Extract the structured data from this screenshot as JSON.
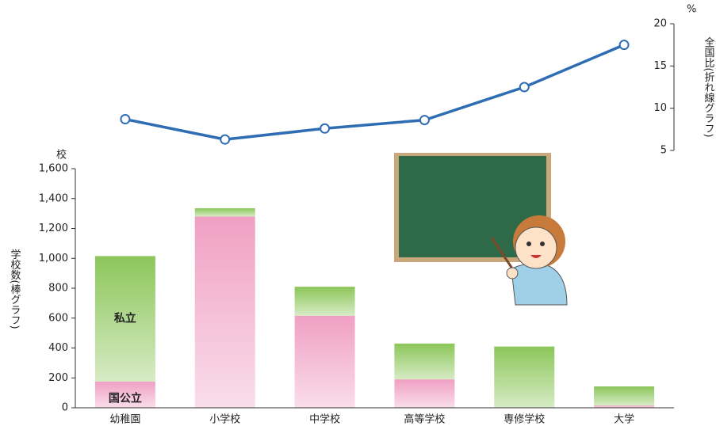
{
  "chart_data": {
    "type": "bar-line",
    "y_unit": "校",
    "y2_unit": "%",
    "ylabel": "学校数(棒グラフ)",
    "y2label": "全国比(折れ線グラフ)",
    "categories": [
      "幼稚園",
      "小学校",
      "中学校",
      "高等学校",
      "専修学校",
      "大学"
    ],
    "series": [
      {
        "name": "国公立",
        "color": "#f0a0c4",
        "values": [
          175,
          1280,
          615,
          190,
          0,
          15
        ]
      },
      {
        "name": "私立",
        "color": "#8cc65a",
        "values": [
          840,
          55,
          195,
          240,
          410,
          128
        ]
      }
    ],
    "line": {
      "color": "#2e6db4",
      "axis": "y2",
      "values": [
        8.7,
        6.3,
        7.6,
        8.6,
        12.5,
        17.5
      ]
    },
    "ylim": [
      0,
      1600
    ],
    "yticks": [
      0,
      200,
      400,
      600,
      800,
      {
        "value": 1000,
        "label": "1,000"
      },
      {
        "value": 1200,
        "label": "1,200"
      },
      {
        "value": 1400,
        "label": "1,400"
      },
      {
        "value": 1600,
        "label": "1,600"
      }
    ],
    "y2lim": [
      5,
      20
    ],
    "y2ticks": [
      5,
      10,
      15,
      20
    ]
  }
}
